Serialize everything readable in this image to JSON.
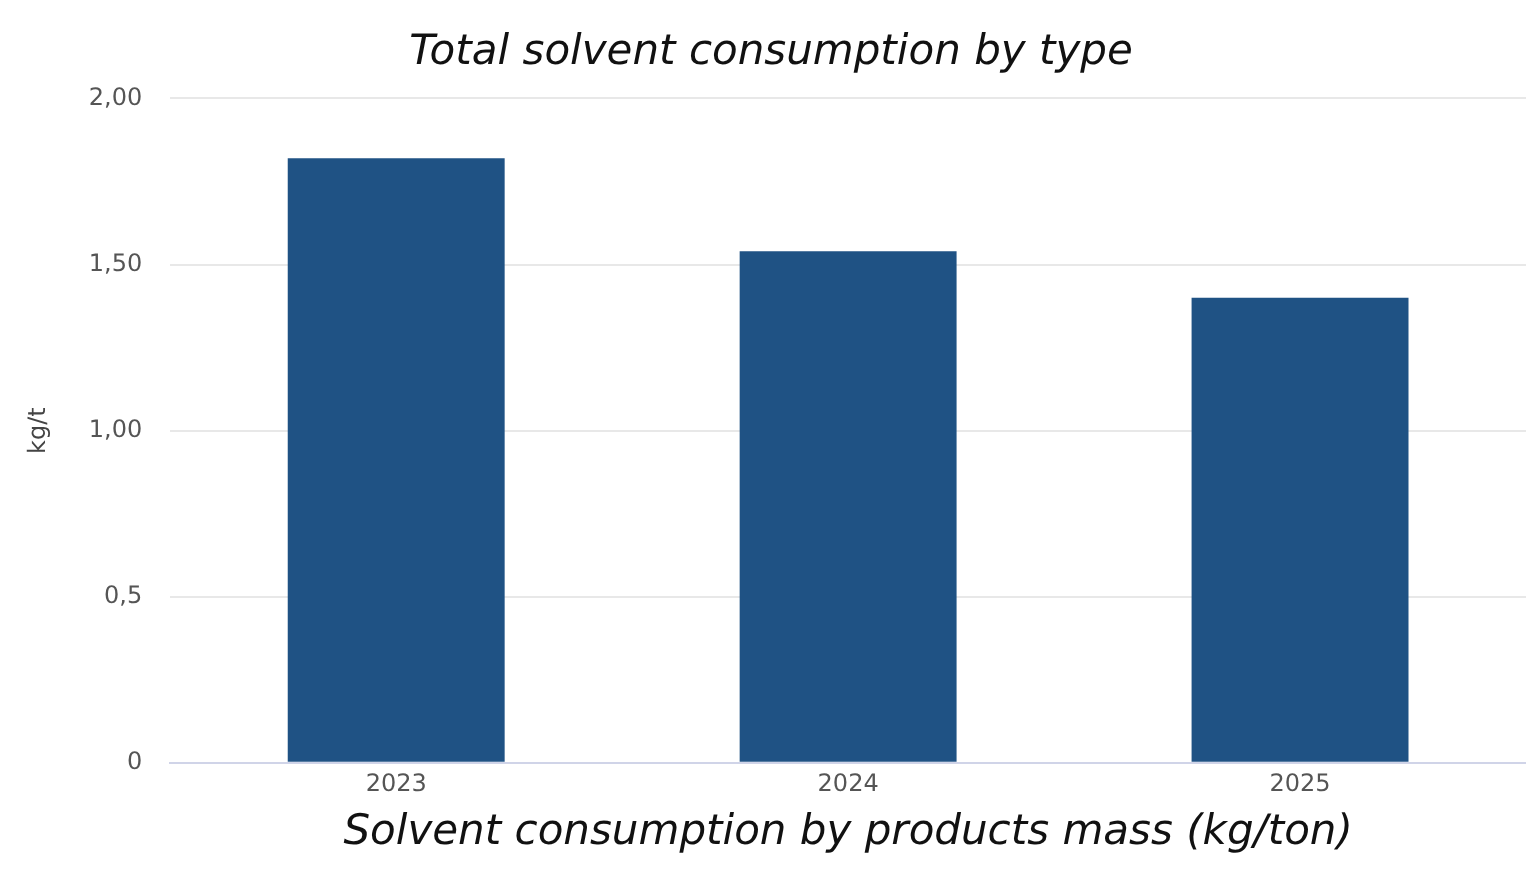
{
  "chart_data": {
    "type": "bar",
    "title": "Total solvent consumption by type",
    "xlabel": "Solvent consumption by products mass (kg/ton)",
    "ylabel": "kg/t",
    "categories": [
      "2023",
      "2024",
      "2025"
    ],
    "values": [
      1.82,
      1.54,
      1.4
    ],
    "color": "#1f5284",
    "ylim": [
      0,
      2
    ],
    "yticks": [
      {
        "value": 0,
        "label": "0"
      },
      {
        "value": 0.5,
        "label": "0,5"
      },
      {
        "value": 1,
        "label": "1,00"
      },
      {
        "value": 1.5,
        "label": "1,50"
      },
      {
        "value": 2,
        "label": "2,00"
      }
    ],
    "grid": "y",
    "legend": false
  }
}
